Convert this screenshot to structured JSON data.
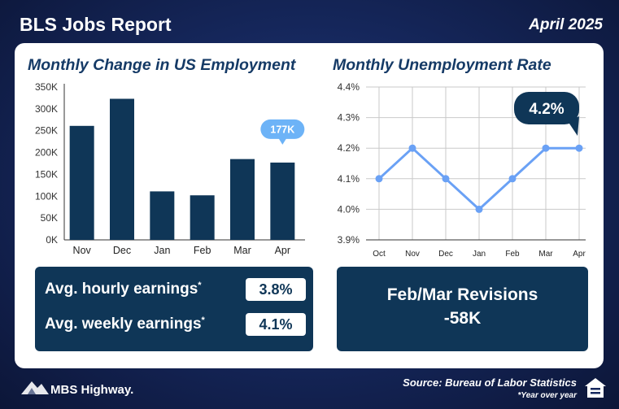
{
  "header": {
    "title": "BLS Jobs Report",
    "date": "April 2025"
  },
  "employment": {
    "title": "Monthly Change in US Employment",
    "callout": "177K",
    "callout_index": 5
  },
  "unemployment": {
    "title": "Monthly Unemployment Rate",
    "callout": "4.2%"
  },
  "earnings": {
    "hourly_label": "Avg. hourly earnings",
    "hourly_value": "3.8%",
    "weekly_label": "Avg. weekly earnings",
    "weekly_value": "4.1%",
    "footnote_mark": "*"
  },
  "revisions": {
    "title": "Feb/Mar Revisions",
    "value": "-58K"
  },
  "footer": {
    "brand": "MBS Highway.",
    "source": "Source: Bureau of Labor Statistics",
    "note": "*Year over year"
  },
  "colors": {
    "navy": "#0f3657",
    "bar": "#0f3657",
    "line": "#6aa1f5",
    "callout_light": "#6db3f7"
  },
  "chart_data": [
    {
      "type": "bar",
      "title": "Monthly Change in US Employment",
      "categories": [
        "Nov",
        "Dec",
        "Jan",
        "Feb",
        "Mar",
        "Apr"
      ],
      "values": [
        261000,
        323000,
        111000,
        102000,
        185000,
        177000
      ],
      "yticks": [
        "0K",
        "50K",
        "100K",
        "150K",
        "200K",
        "250K",
        "300K",
        "350K"
      ],
      "ylim": [
        0,
        350000
      ],
      "grid": false
    },
    {
      "type": "line",
      "title": "Monthly Unemployment Rate",
      "categories": [
        "Oct",
        "Nov",
        "Dec",
        "Jan",
        "Feb",
        "Mar",
        "Apr"
      ],
      "values": [
        4.1,
        4.2,
        4.1,
        4.0,
        4.1,
        4.2,
        4.2
      ],
      "yticks": [
        "3.9%",
        "4.0%",
        "4.1%",
        "4.2%",
        "4.3%",
        "4.4%"
      ],
      "ylim": [
        3.9,
        4.4
      ],
      "grid": true
    }
  ]
}
